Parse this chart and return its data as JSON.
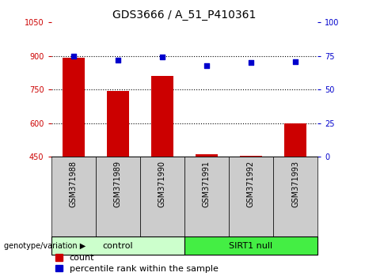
{
  "title": "GDS3666 / A_51_P410361",
  "categories": [
    "GSM371988",
    "GSM371989",
    "GSM371990",
    "GSM371991",
    "GSM371992",
    "GSM371993"
  ],
  "count_values": [
    893,
    745,
    810,
    463,
    453,
    600
  ],
  "percentile_values": [
    75.0,
    72.0,
    74.0,
    68.0,
    70.0,
    70.5
  ],
  "ylim_left": [
    450,
    1050
  ],
  "ylim_right": [
    0,
    100
  ],
  "yticks_left": [
    450,
    600,
    750,
    900,
    1050
  ],
  "yticks_right": [
    0,
    25,
    50,
    75,
    100
  ],
  "bar_color": "#cc0000",
  "dot_color": "#0000cc",
  "bar_width": 0.5,
  "control_label": "control",
  "sirt1_label": "SIRT1 null",
  "genotype_label": "genotype/variation",
  "legend_count": "count",
  "legend_percentile": "percentile rank within the sample",
  "control_bg": "#ccffcc",
  "sirt1_bg": "#44ee44",
  "sample_bg": "#cccccc",
  "plot_bg": "#ffffff",
  "title_fontsize": 10,
  "tick_fontsize": 7,
  "label_fontsize": 8,
  "legend_fontsize": 8,
  "left_tick_color": "#cc0000",
  "right_tick_color": "#0000cc",
  "grid_ticks": [
    600,
    750,
    900
  ]
}
